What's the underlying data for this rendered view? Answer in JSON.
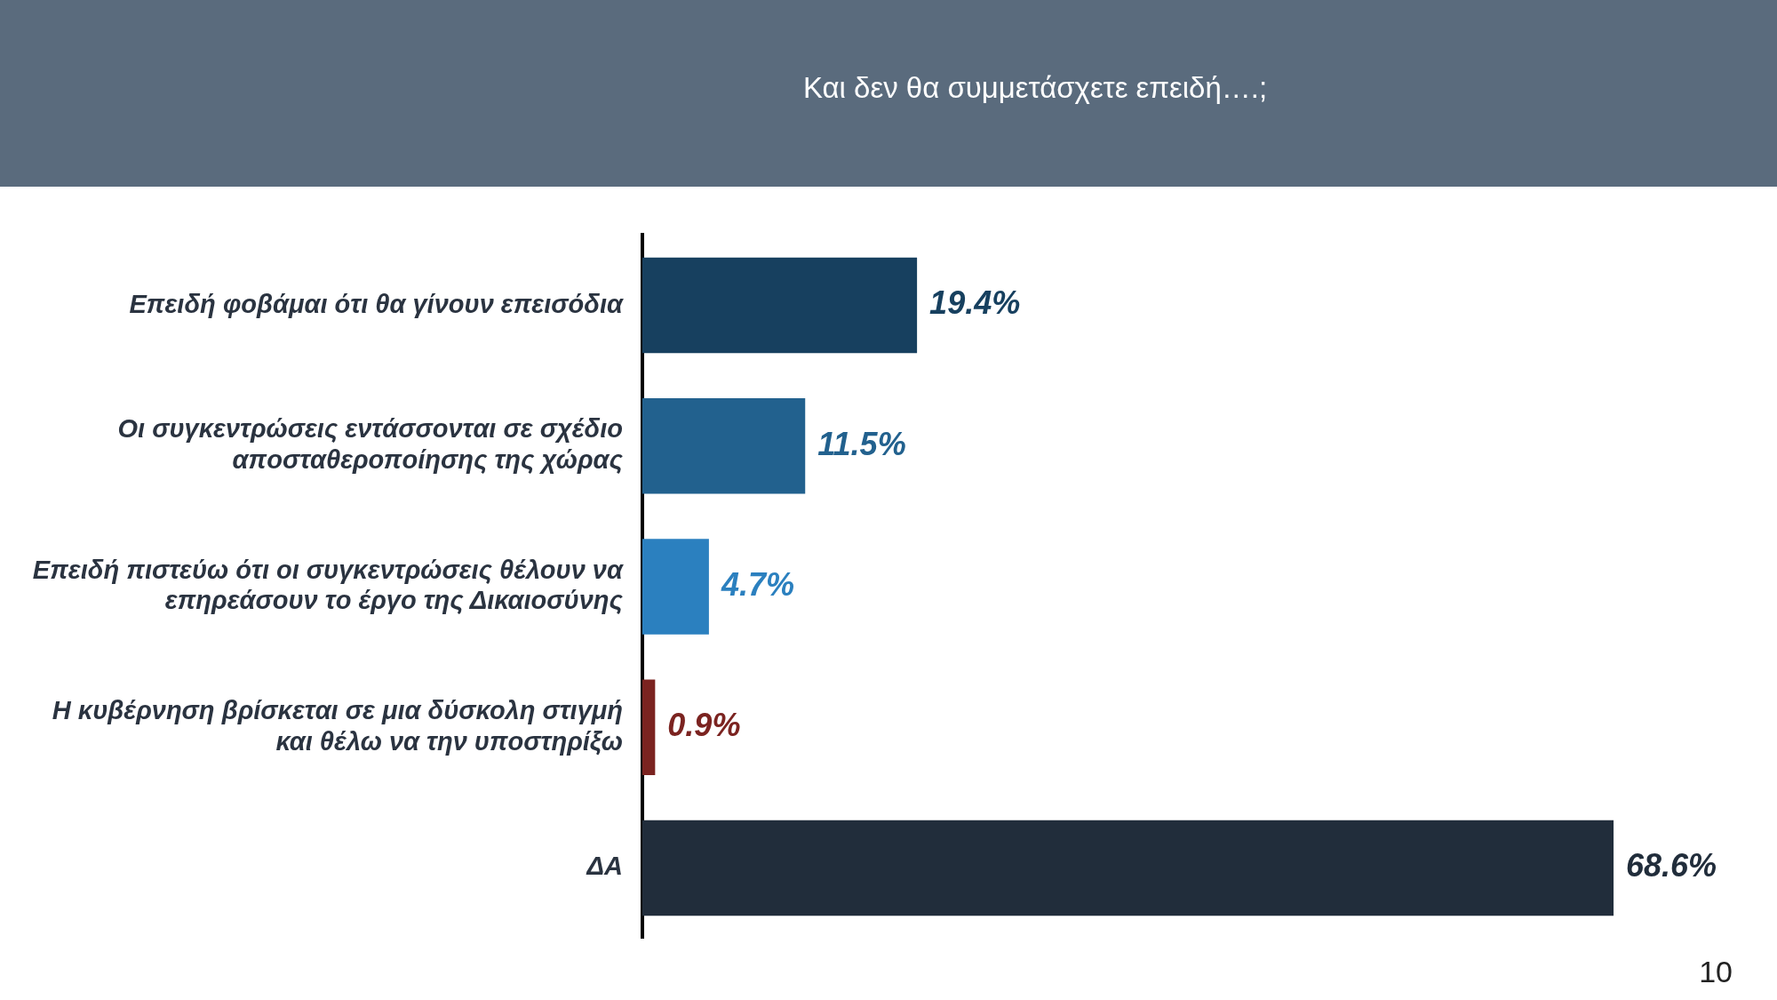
{
  "chart_data": {
    "type": "bar",
    "orientation": "horizontal",
    "title": "Και δεν θα συμμετάσχετε επειδή….;",
    "categories": [
      "Επειδή φοβάμαι ότι θα γίνουν επεισόδια",
      "Οι συγκεντρώσεις εντάσσονται σε σχέδιο αποσταθεροποίησης της χώρας",
      "Επειδή πιστεύω ότι οι συγκεντρώσεις θέλουν να επηρεάσουν το έργο της Δικαιοσύνης",
      "Η κυβέρνηση βρίσκεται σε μια δύσκολη στιγμή και θέλω να την υποστηρίξω",
      "ΔΑ"
    ],
    "values": [
      19.4,
      11.5,
      4.7,
      0.9,
      68.6
    ],
    "colors": [
      "#17405f",
      "#22618e",
      "#2b80bf",
      "#7b2320",
      "#212d3b"
    ],
    "value_labels": [
      "19.4%",
      "11.5%",
      "4.7%",
      "0.9%",
      "68.6%"
    ],
    "annotations": [
      "10"
    ],
    "legend": false,
    "tick_labels": "y"
  }
}
